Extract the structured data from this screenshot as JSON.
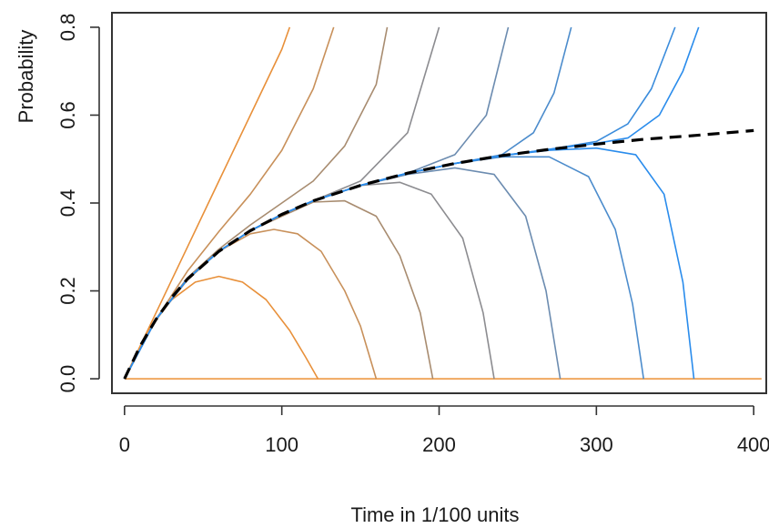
{
  "chart_data": {
    "type": "line",
    "title": "",
    "xlabel": "Time in 1/100 units",
    "ylabel": "Probability",
    "xlim": [
      -8,
      408
    ],
    "ylim": [
      -0.033,
      0.833
    ],
    "xticks": [
      0,
      100,
      200,
      300,
      400
    ],
    "yticks": [
      0.0,
      0.2,
      0.4,
      0.6,
      0.8
    ],
    "xtick_labels": [
      "0",
      "100",
      "200",
      "300",
      "400"
    ],
    "ytick_labels": [
      "0.0",
      "0.2",
      "0.4",
      "0.6",
      "0.8"
    ],
    "grid": false,
    "legend": "none",
    "limit_curve": {
      "style": "dashed",
      "color": "#000000",
      "x": [
        0,
        10,
        20,
        30,
        40,
        60,
        80,
        100,
        120,
        150,
        180,
        210,
        240,
        270,
        300,
        330,
        360,
        400
      ],
      "y": [
        0.0,
        0.075,
        0.135,
        0.185,
        0.227,
        0.29,
        0.337,
        0.374,
        0.405,
        0.44,
        0.468,
        0.49,
        0.508,
        0.522,
        0.534,
        0.545,
        0.553,
        0.565
      ]
    },
    "zero_line": {
      "y": 0,
      "x": [
        0,
        405
      ],
      "color": "#F0A860"
    },
    "rising_series": [
      {
        "color": "#E8903A",
        "x": [
          0,
          10,
          20,
          40,
          60,
          80,
          100,
          105
        ],
        "y": [
          0.0,
          0.075,
          0.15,
          0.3,
          0.45,
          0.6,
          0.75,
          0.8
        ]
      },
      {
        "color": "#C8905A",
        "x": [
          0,
          20,
          40,
          60,
          80,
          100,
          120,
          133
        ],
        "y": [
          0.0,
          0.135,
          0.245,
          0.335,
          0.42,
          0.52,
          0.66,
          0.8
        ]
      },
      {
        "color": "#A88C70",
        "x": [
          0,
          20,
          40,
          60,
          80,
          100,
          120,
          140,
          160,
          167
        ],
        "y": [
          0.0,
          0.135,
          0.23,
          0.295,
          0.35,
          0.4,
          0.45,
          0.53,
          0.67,
          0.8
        ]
      },
      {
        "color": "#8C8C90",
        "x": [
          0,
          20,
          40,
          60,
          80,
          100,
          120,
          150,
          180,
          200
        ],
        "y": [
          0.0,
          0.135,
          0.227,
          0.29,
          0.337,
          0.374,
          0.405,
          0.45,
          0.56,
          0.8
        ]
      },
      {
        "color": "#6C8CB0",
        "x": [
          0,
          20,
          40,
          60,
          80,
          100,
          120,
          150,
          180,
          210,
          230,
          244
        ],
        "y": [
          0.0,
          0.135,
          0.227,
          0.29,
          0.337,
          0.374,
          0.405,
          0.44,
          0.468,
          0.51,
          0.6,
          0.8
        ]
      },
      {
        "color": "#4C8CCC",
        "x": [
          0,
          20,
          40,
          60,
          80,
          100,
          120,
          150,
          180,
          210,
          240,
          260,
          273,
          284
        ],
        "y": [
          0.0,
          0.135,
          0.227,
          0.29,
          0.337,
          0.374,
          0.405,
          0.44,
          0.468,
          0.49,
          0.51,
          0.56,
          0.65,
          0.8
        ]
      },
      {
        "color": "#3A8CDC",
        "x": [
          0,
          20,
          40,
          60,
          80,
          100,
          120,
          150,
          180,
          210,
          240,
          270,
          300,
          320,
          335,
          350
        ],
        "y": [
          0.0,
          0.135,
          0.227,
          0.29,
          0.337,
          0.374,
          0.405,
          0.44,
          0.468,
          0.49,
          0.508,
          0.522,
          0.54,
          0.58,
          0.66,
          0.8
        ]
      },
      {
        "color": "#2A8CEC",
        "x": [
          0,
          20,
          40,
          60,
          80,
          100,
          120,
          150,
          180,
          210,
          240,
          270,
          300,
          320,
          340,
          355,
          365
        ],
        "y": [
          0.0,
          0.135,
          0.227,
          0.29,
          0.337,
          0.374,
          0.405,
          0.44,
          0.468,
          0.49,
          0.508,
          0.522,
          0.536,
          0.548,
          0.6,
          0.7,
          0.8
        ]
      }
    ],
    "falling_series": [
      {
        "color": "#E8903A",
        "x": [
          0,
          15,
          30,
          45,
          60,
          75,
          90,
          105,
          115,
          123
        ],
        "y": [
          0.0,
          0.11,
          0.18,
          0.22,
          0.233,
          0.22,
          0.18,
          0.11,
          0.05,
          0.0
        ]
      },
      {
        "color": "#C8905A",
        "x": [
          0,
          20,
          40,
          60,
          80,
          95,
          110,
          125,
          140,
          150,
          160
        ],
        "y": [
          0.0,
          0.135,
          0.225,
          0.29,
          0.33,
          0.34,
          0.33,
          0.29,
          0.2,
          0.12,
          0.0
        ]
      },
      {
        "color": "#A88C70",
        "x": [
          0,
          20,
          40,
          60,
          80,
          100,
          120,
          140,
          160,
          175,
          188,
          196
        ],
        "y": [
          0.0,
          0.135,
          0.227,
          0.29,
          0.337,
          0.37,
          0.402,
          0.405,
          0.37,
          0.28,
          0.15,
          0.0
        ]
      },
      {
        "color": "#8C8C90",
        "x": [
          0,
          20,
          40,
          60,
          80,
          100,
          120,
          150,
          175,
          195,
          215,
          228,
          235
        ],
        "y": [
          0.0,
          0.135,
          0.227,
          0.29,
          0.337,
          0.374,
          0.405,
          0.44,
          0.447,
          0.42,
          0.32,
          0.15,
          0.0
        ]
      },
      {
        "color": "#6C8CB0",
        "x": [
          0,
          20,
          40,
          60,
          80,
          100,
          120,
          150,
          180,
          210,
          235,
          255,
          268,
          277
        ],
        "y": [
          0.0,
          0.135,
          0.227,
          0.29,
          0.337,
          0.374,
          0.405,
          0.44,
          0.465,
          0.48,
          0.465,
          0.37,
          0.2,
          0.0
        ]
      },
      {
        "color": "#4C8CCC",
        "x": [
          0,
          20,
          40,
          60,
          80,
          100,
          120,
          150,
          180,
          210,
          240,
          270,
          295,
          312,
          323,
          330
        ],
        "y": [
          0.0,
          0.135,
          0.227,
          0.29,
          0.337,
          0.374,
          0.405,
          0.44,
          0.468,
          0.49,
          0.505,
          0.505,
          0.46,
          0.34,
          0.17,
          0.0
        ]
      },
      {
        "color": "#2A8CEC",
        "x": [
          0,
          20,
          40,
          60,
          80,
          100,
          120,
          150,
          180,
          210,
          240,
          270,
          300,
          325,
          343,
          355,
          362
        ],
        "y": [
          0.0,
          0.135,
          0.227,
          0.29,
          0.337,
          0.374,
          0.405,
          0.44,
          0.468,
          0.49,
          0.508,
          0.52,
          0.525,
          0.51,
          0.42,
          0.22,
          0.0
        ]
      }
    ]
  }
}
